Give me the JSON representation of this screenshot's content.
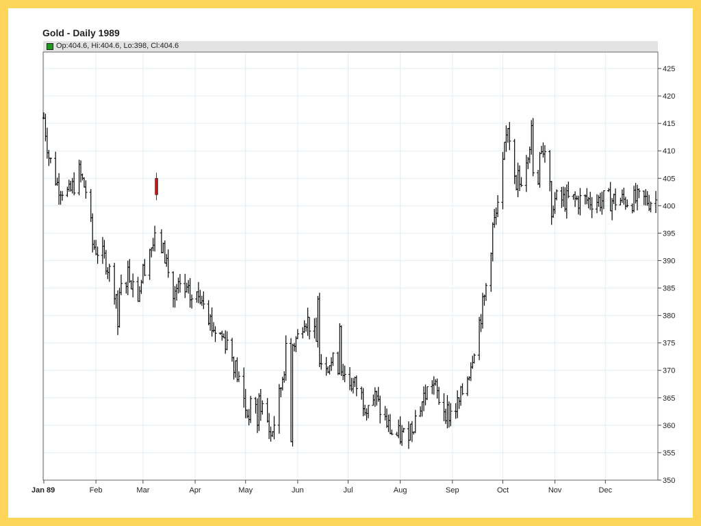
{
  "chart_data": {
    "type": "ohlc",
    "title": "Gold - Daily 1989",
    "legend": {
      "swatch_color": "#1c9a1c",
      "text": "Op:404.6, Hi:404.6, Lo:398, Cl:404.6"
    },
    "ylim": [
      350,
      428
    ],
    "y_ticks": [
      350,
      355,
      360,
      365,
      370,
      375,
      380,
      385,
      390,
      395,
      400,
      405,
      410,
      415,
      420,
      425
    ],
    "y_axis_side": "right",
    "grid": true,
    "x_tick_labels": [
      "Jan 89",
      "Feb",
      "Mar",
      "Apr",
      "May",
      "Jun",
      "Jul",
      "Aug",
      "Sep",
      "Oct",
      "Nov",
      "Dec"
    ],
    "x_tick_bold": [
      true,
      false,
      false,
      false,
      false,
      false,
      false,
      false,
      false,
      false,
      false,
      false
    ],
    "bar_color": "#000000",
    "highlight_color": "#c01818",
    "path_anchors": [
      [
        0,
        416
      ],
      [
        3,
        409
      ],
      [
        8,
        404
      ],
      [
        15,
        402
      ],
      [
        21,
        406
      ],
      [
        26,
        402
      ],
      [
        29,
        393
      ],
      [
        37,
        390
      ],
      [
        44,
        383
      ],
      [
        50,
        388
      ],
      [
        56,
        384
      ],
      [
        62,
        392
      ],
      [
        68,
        394
      ],
      [
        73,
        390
      ],
      [
        76,
        383
      ],
      [
        81,
        385
      ],
      [
        88,
        383
      ],
      [
        95,
        384
      ],
      [
        100,
        378
      ],
      [
        110,
        375
      ],
      [
        116,
        368
      ],
      [
        121,
        362
      ],
      [
        127,
        365
      ],
      [
        131,
        363
      ],
      [
        135,
        358
      ],
      [
        139,
        363
      ],
      [
        144,
        373
      ],
      [
        151,
        376
      ],
      [
        155,
        380
      ],
      [
        159,
        378
      ],
      [
        165,
        372
      ],
      [
        176,
        371
      ],
      [
        181,
        368
      ],
      [
        186,
        367
      ],
      [
        191,
        364
      ],
      [
        197,
        365
      ],
      [
        201,
        362
      ],
      [
        208,
        358
      ],
      [
        214,
        358
      ],
      [
        219,
        360
      ],
      [
        226,
        365
      ],
      [
        231,
        368
      ],
      [
        236,
        364
      ],
      [
        241,
        362
      ],
      [
        247,
        364
      ],
      [
        253,
        370
      ],
      [
        257,
        376
      ],
      [
        262,
        383
      ],
      [
        265,
        390
      ],
      [
        267,
        396
      ],
      [
        270,
        399
      ],
      [
        276,
        415
      ],
      [
        279,
        408
      ],
      [
        283,
        404
      ],
      [
        286,
        408
      ],
      [
        290,
        413
      ],
      [
        295,
        411
      ],
      [
        299,
        410
      ],
      [
        303,
        401
      ]
    ],
    "spikes": [
      {
        "day": 48,
        "close": 403
      },
      {
        "day": 44,
        "close": 378
      },
      {
        "day": 145,
        "close": 360
      },
      {
        "day": 147,
        "close": 357
      },
      {
        "day": 127,
        "close": 360
      },
      {
        "day": 153,
        "close": 372
      },
      {
        "day": 163,
        "close": 383
      },
      {
        "day": 176,
        "close": 378
      },
      {
        "day": 216,
        "close": 355
      },
      {
        "day": 291,
        "close": 406
      },
      {
        "day": 281,
        "close": 403
      },
      {
        "day": 294,
        "close": 404
      },
      {
        "day": 302,
        "close": 398
      }
    ],
    "highlight_bar": {
      "day": 67,
      "open": 402,
      "high": 406,
      "low": 401,
      "close": 405
    }
  }
}
